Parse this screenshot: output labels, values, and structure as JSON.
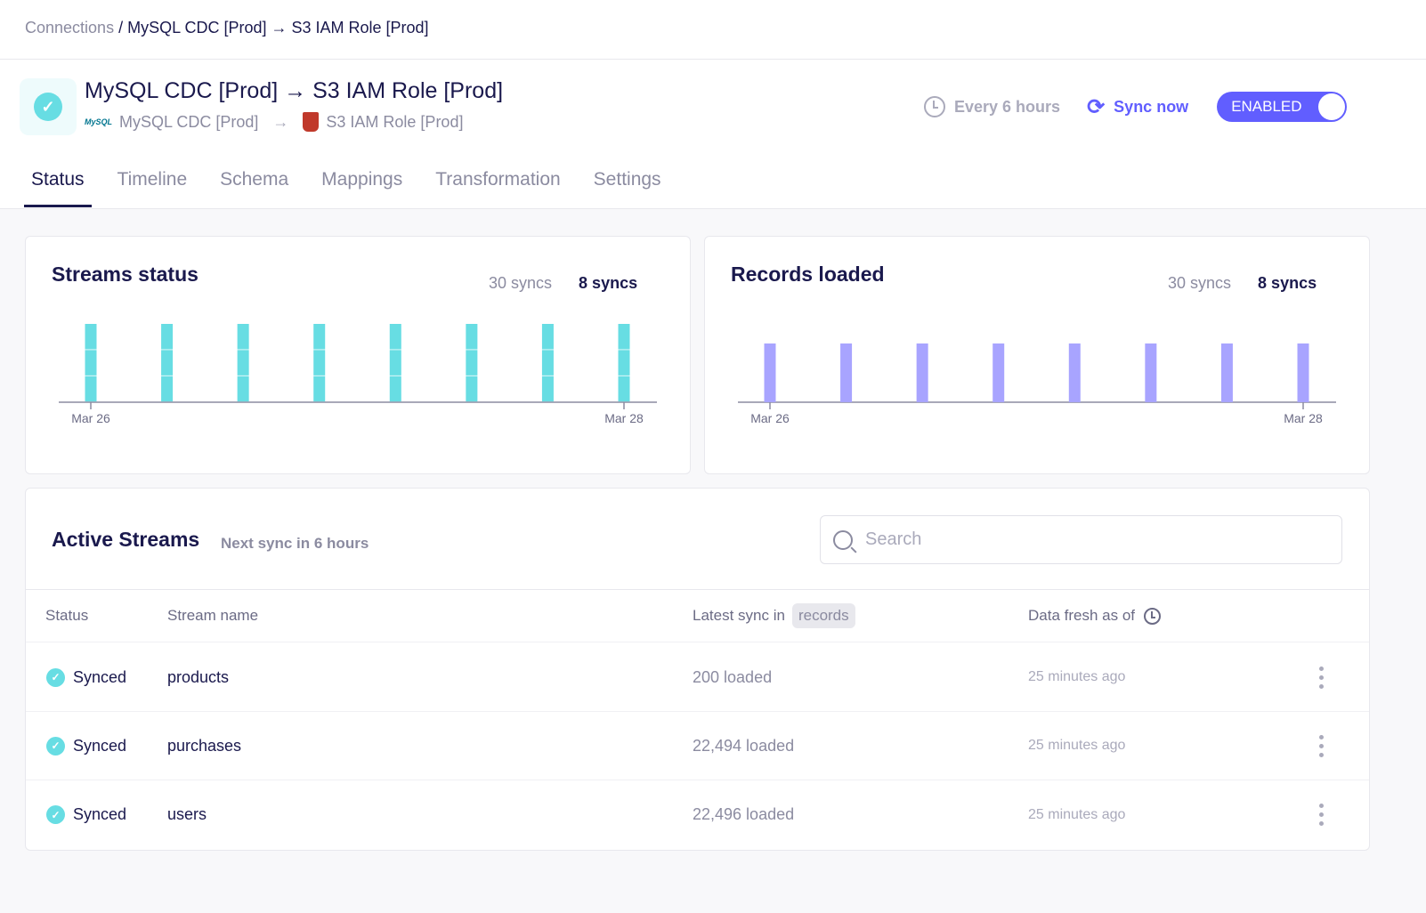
{
  "breadcrumb": {
    "parent": "Connections",
    "separator": "/",
    "current": "MySQL CDC [Prod] → S3 IAM Role [Prod]"
  },
  "header": {
    "title": "MySQL CDC [Prod] → S3 IAM Role [Prod]",
    "source": "MySQL CDC [Prod]",
    "source_logo": "MySQL",
    "arrow": "→",
    "destination": "S3 IAM Role [Prod]",
    "status_icon": "check-circle",
    "status_color": "#67dde3"
  },
  "actions": {
    "frequency": "Every 6 hours",
    "sync_now": "Sync now",
    "toggle": "ENABLED",
    "toggle_on": true,
    "accent": "#615eff"
  },
  "tabs": [
    "Status",
    "Timeline",
    "Schema",
    "Mappings",
    "Transformation",
    "Settings"
  ],
  "active_tab": "Status",
  "streams_card": {
    "title": "Streams status",
    "range_a": "30 syncs",
    "range_b": "8 syncs"
  },
  "records_card": {
    "title": "Records loaded",
    "range_a": "30 syncs",
    "range_b": "8 syncs"
  },
  "chart_data": [
    {
      "type": "bar",
      "stacked": true,
      "x_ticks": [
        "Mar 26",
        "Mar 28"
      ],
      "bars": 8,
      "series": [
        {
          "values": [
            1,
            1,
            1,
            1,
            1,
            1,
            1,
            1
          ]
        },
        {
          "values": [
            1,
            1,
            1,
            1,
            1,
            1,
            1,
            1
          ]
        },
        {
          "values": [
            1,
            1,
            1,
            1,
            1,
            1,
            1,
            1
          ]
        }
      ],
      "color": "#67dde3",
      "grid": false
    },
    {
      "type": "bar",
      "x_ticks": [
        "Mar 26",
        "Mar 28"
      ],
      "values": [
        1,
        1,
        1,
        1,
        1,
        1,
        1,
        1
      ],
      "color": "#a8a4ff",
      "grid": false
    }
  ],
  "active_streams": {
    "title": "Active Streams",
    "subtitle": "Next sync in 6 hours",
    "search_placeholder": "Search",
    "columns": {
      "status": "Status",
      "name": "Stream name",
      "latest": "Latest sync in",
      "latest_unit": "records",
      "fresh": "Data fresh as of"
    },
    "rows": [
      {
        "status": "Synced",
        "name": "products",
        "latest": "200 loaded",
        "fresh": "25 minutes ago"
      },
      {
        "status": "Synced",
        "name": "purchases",
        "latest": "22,494 loaded",
        "fresh": "25 minutes ago"
      },
      {
        "status": "Synced",
        "name": "users",
        "latest": "22,496 loaded",
        "fresh": "25 minutes ago"
      }
    ]
  }
}
